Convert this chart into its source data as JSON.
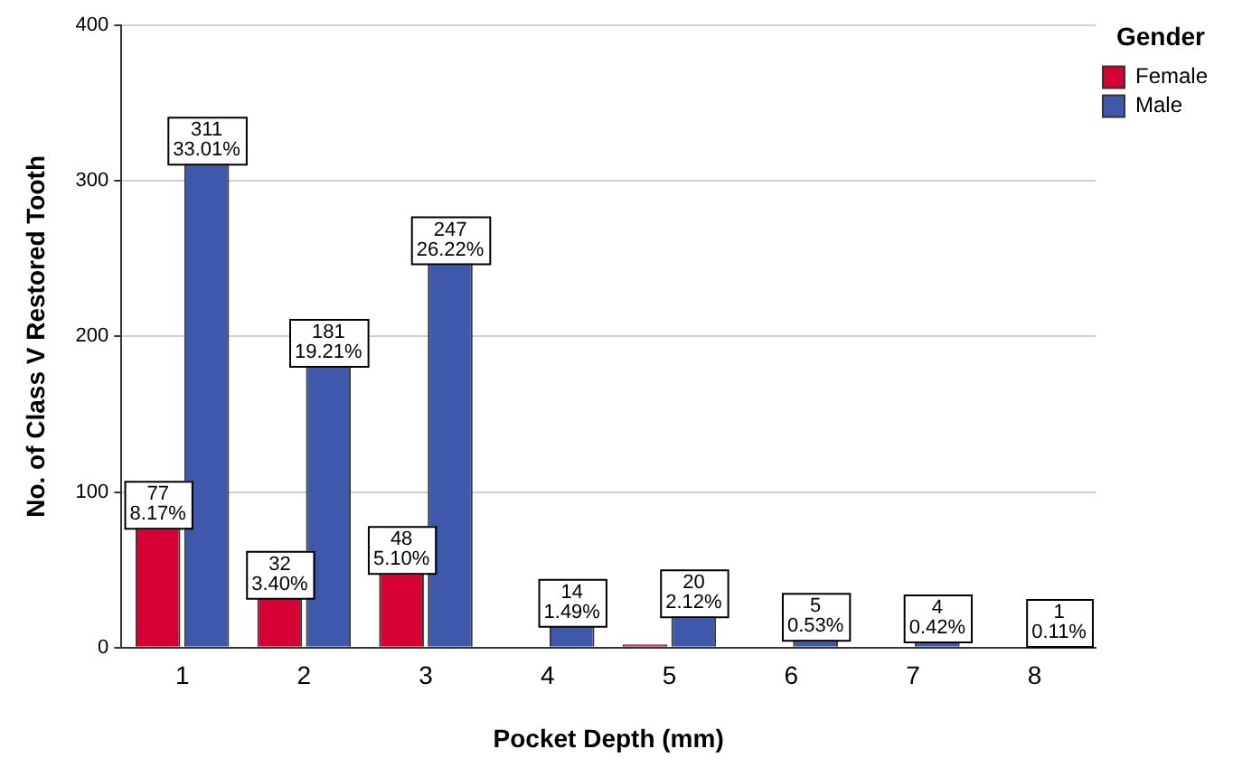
{
  "chart_data": {
    "type": "bar",
    "xlabel": "Pocket Depth (mm)",
    "ylabel": "No. of Class V Restored Tooth",
    "legend_title": "Gender",
    "categories": [
      "1",
      "2",
      "3",
      "4",
      "5",
      "6",
      "7",
      "8"
    ],
    "series": [
      {
        "name": "Female",
        "color": "#d70033",
        "values": [
          77,
          32,
          48,
          null,
          2,
          null,
          null,
          null
        ],
        "value_labels": [
          "77\n8.17%",
          "32\n3.40%",
          "48\n5.10%",
          null,
          null,
          null,
          null,
          null
        ]
      },
      {
        "name": "Male",
        "color": "#3e58ac",
        "values": [
          311,
          181,
          247,
          14,
          20,
          5,
          4,
          1
        ],
        "value_labels": [
          "311\n33.01%",
          "181\n19.21%",
          "247\n26.22%",
          "14\n1.49%",
          "20\n2.12%",
          "5\n0.53%",
          "4\n0.42%",
          "1\n0.11%"
        ]
      }
    ],
    "ylim": [
      0,
      400
    ],
    "yticks": [
      0,
      100,
      200,
      300,
      400
    ],
    "grid": "y",
    "legend": "top right"
  }
}
